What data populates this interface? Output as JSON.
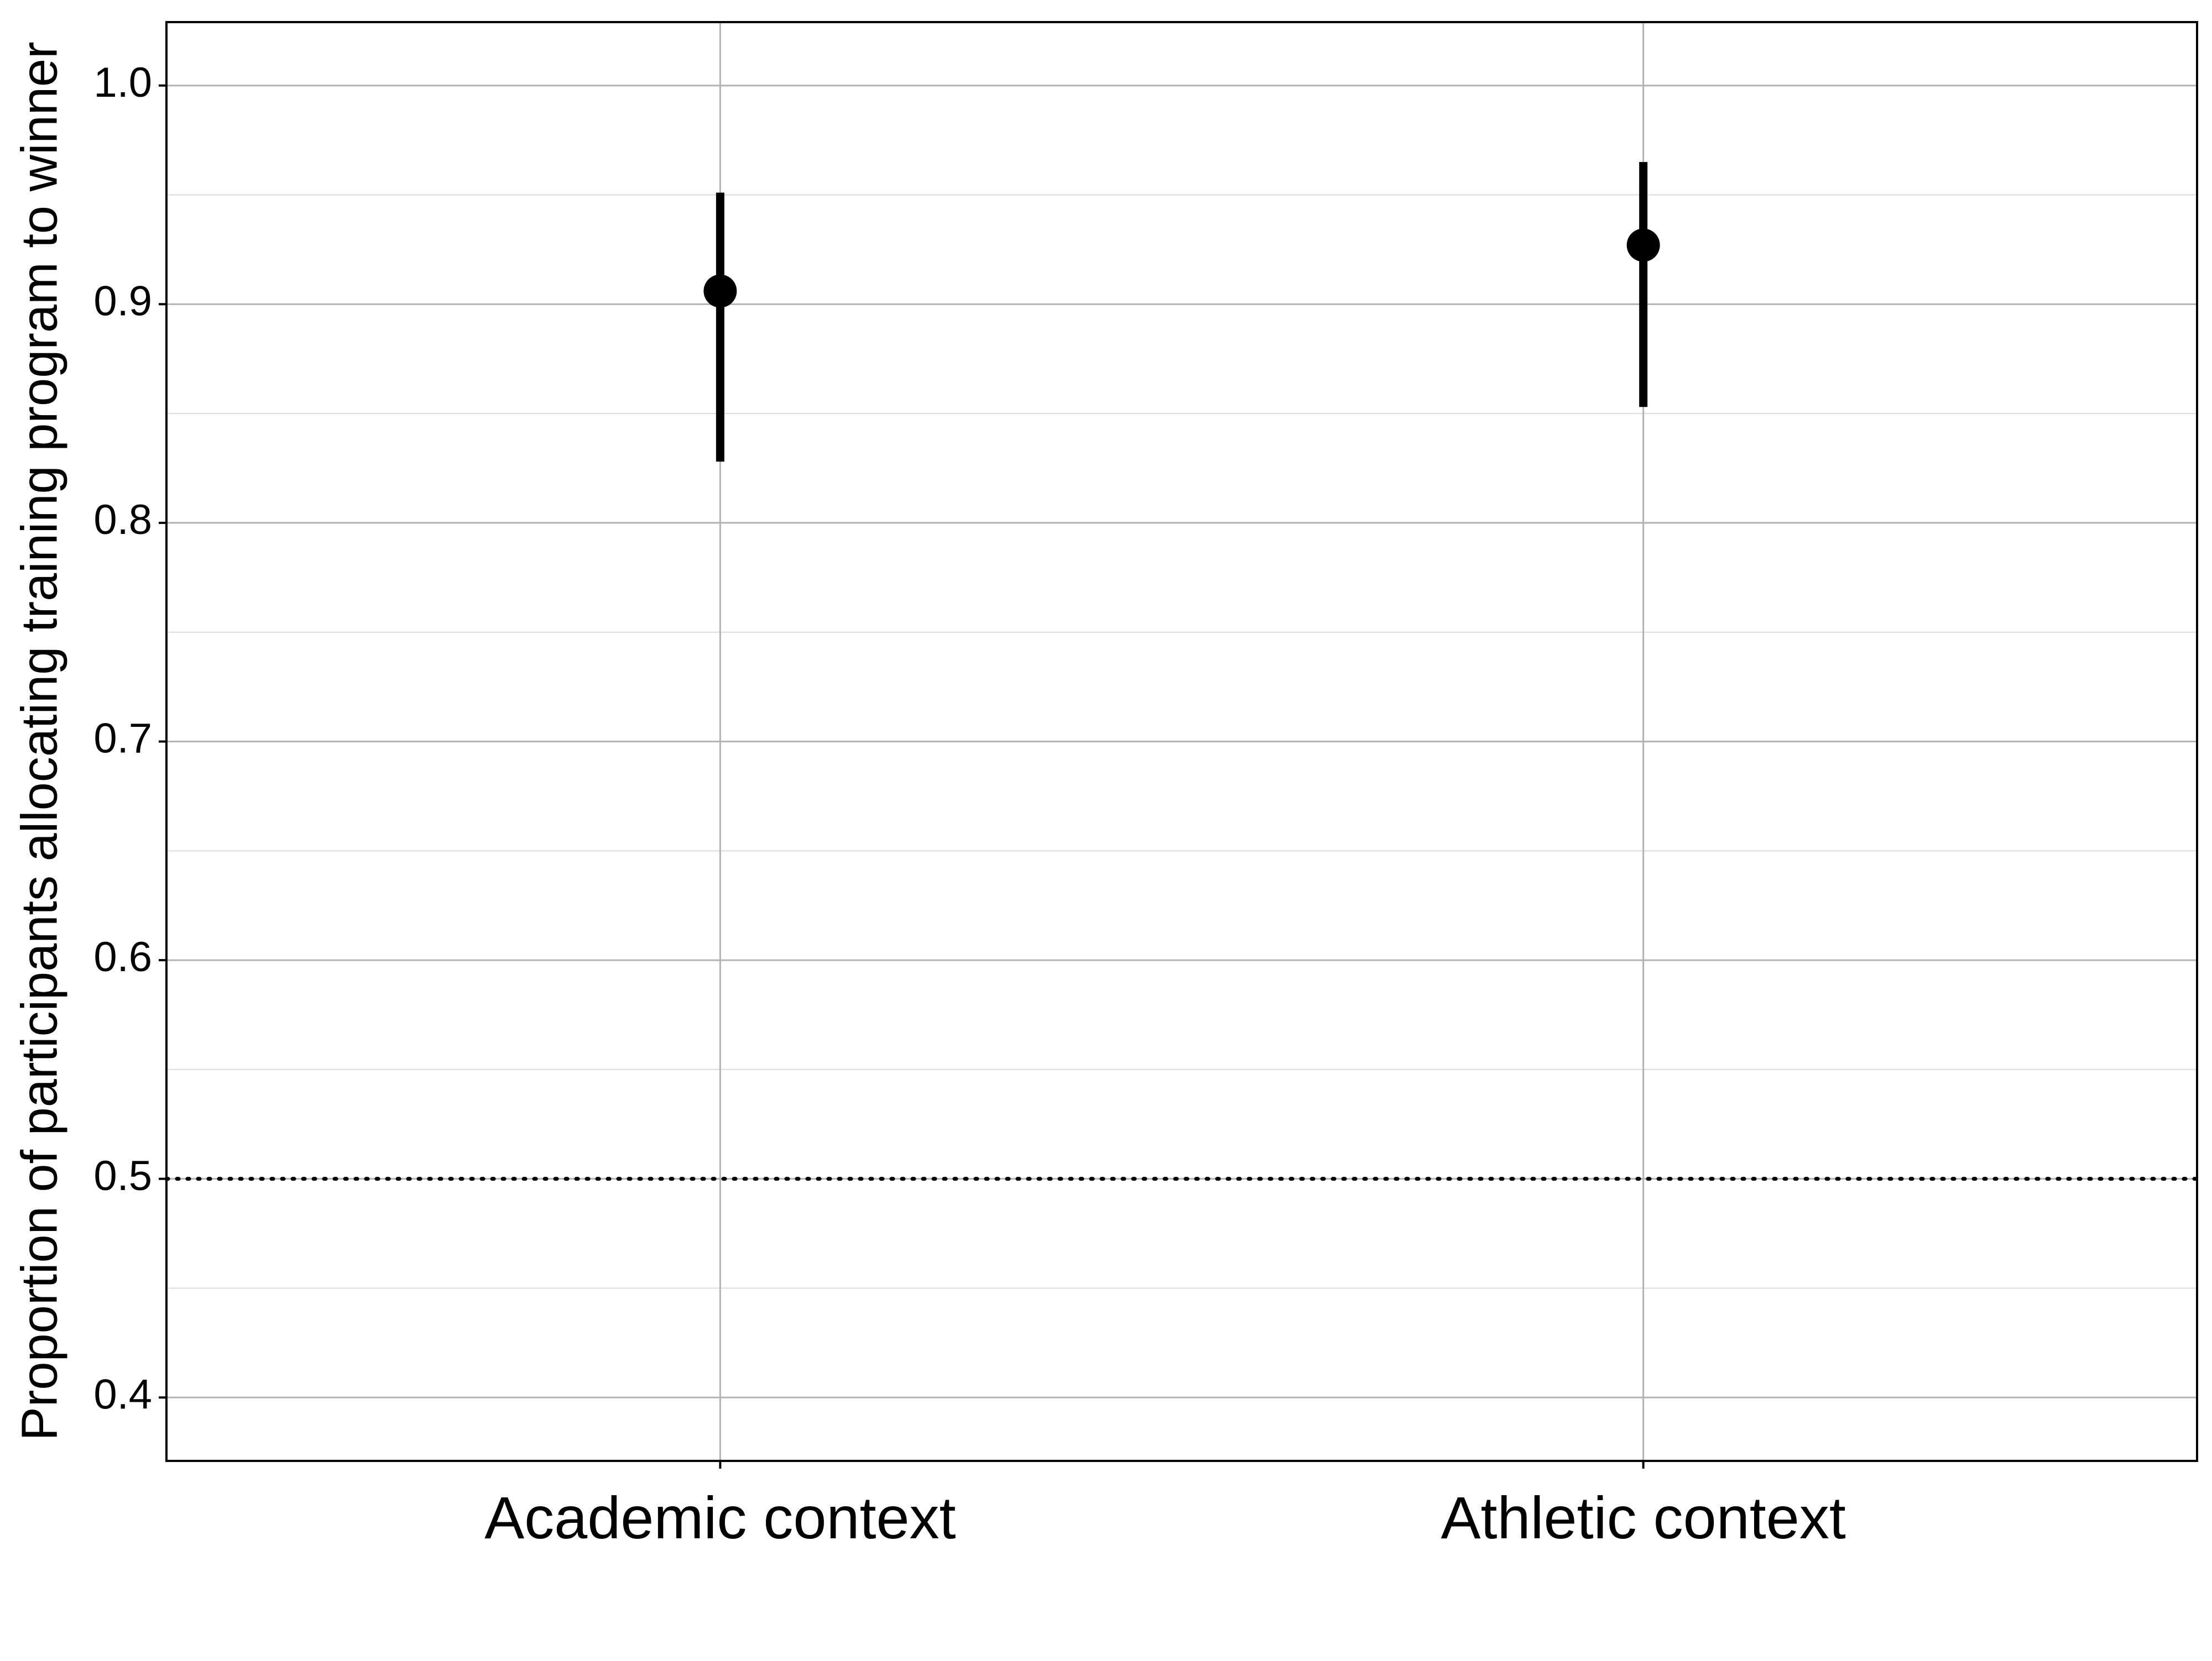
{
  "chart_data": {
    "type": "scatter",
    "title": "",
    "xlabel": "",
    "ylabel": "Proportion of participants allocating training program to winner",
    "categories": [
      "Academic context",
      "Athletic context"
    ],
    "points": [
      {
        "category": "Academic context",
        "y": 0.906,
        "ci_low": 0.828,
        "ci_high": 0.951
      },
      {
        "category": "Athletic context",
        "y": 0.927,
        "ci_low": 0.853,
        "ci_high": 0.965
      }
    ],
    "reference_line": {
      "y": 0.5,
      "style": "dotted"
    },
    "ylim": [
      0.371,
      1.029
    ],
    "yticks": [
      "0.4",
      "0.5",
      "0.6",
      "0.7",
      "0.8",
      "0.9",
      "1.0"
    ],
    "grid": true,
    "legend": "none",
    "colors": {
      "marks": "#000000",
      "grid_major": "#b3b3b3",
      "grid_minor": "#dcdcdc",
      "frame": "#000000"
    }
  }
}
